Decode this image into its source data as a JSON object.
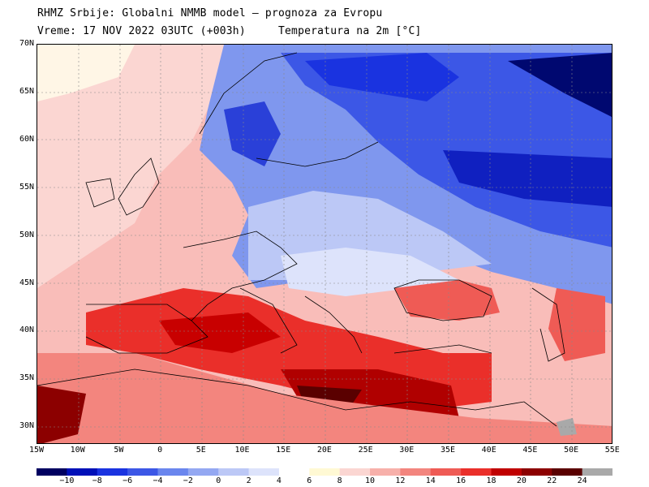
{
  "header": {
    "title": "RHMZ Srbije: Globalni NMMB model — prognoza za Evropu",
    "subtitle": "Vreme: 17 NOV 2022 03UTC (+003h)     Temperatura na 2m [°C]"
  },
  "map": {
    "lat_labels": [
      "70N",
      "65N",
      "60N",
      "55N",
      "50N",
      "45N",
      "40N",
      "35N",
      "30N"
    ],
    "lon_labels": [
      "15W",
      "10W",
      "5W",
      "0",
      "5E",
      "10E",
      "15E",
      "20E",
      "25E",
      "30E",
      "35E",
      "40E",
      "45E",
      "50E",
      "55E"
    ],
    "region": "Europe",
    "variable": "Temperatura na 2m [°C]"
  },
  "legend": {
    "ticks": [
      "−10",
      "−8",
      "−6",
      "−4",
      "−2",
      "0",
      "2",
      "4",
      "6",
      "8",
      "10",
      "12",
      "14",
      "16",
      "18",
      "20",
      "22",
      "24"
    ],
    "colors": [
      "#000060",
      "#0010b8",
      "#1a33e0",
      "#3c57e6",
      "#6a86ee",
      "#94a8f2",
      "#bcc8f6",
      "#dde3fb",
      "#ffffff",
      "#fff9d4",
      "#fbd6d2",
      "#f7b0aa",
      "#f3857e",
      "#ef5b55",
      "#ea2f2a",
      "#c00000",
      "#8c0000",
      "#5a0000",
      "#a9a9a9"
    ]
  }
}
